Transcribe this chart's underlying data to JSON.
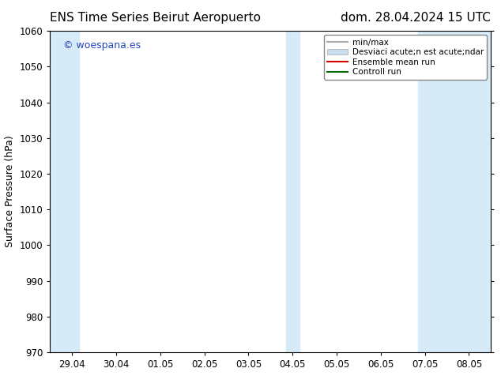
{
  "title_left": "ENS Time Series Beirut Aeropuerto",
  "title_right": "dom. 28.04.2024 15 UTC",
  "ylabel": "Surface Pressure (hPa)",
  "ylim": [
    970,
    1060
  ],
  "yticks": [
    970,
    980,
    990,
    1000,
    1010,
    1020,
    1030,
    1040,
    1050,
    1060
  ],
  "xlabels": [
    "29.04",
    "30.04",
    "01.05",
    "02.05",
    "03.05",
    "04.05",
    "05.05",
    "06.05",
    "07.05",
    "08.05"
  ],
  "x_positions": [
    0,
    1,
    2,
    3,
    4,
    5,
    6,
    7,
    8,
    9
  ],
  "xlim": [
    -0.5,
    9.5
  ],
  "shaded_bands": [
    {
      "xmin": -0.5,
      "xmax": 0.15
    },
    {
      "xmin": 4.85,
      "xmax": 5.15
    },
    {
      "xmin": 7.85,
      "xmax": 9.5
    }
  ],
  "band_color": "#d6eaf8",
  "watermark": "© woespana.es",
  "watermark_color": "#2244bb",
  "legend_line1_label": "min/max",
  "legend_line1_color": "#aaaaaa",
  "legend_band_label": "Desviaci acute;n est acute;ndar",
  "legend_band_color": "#c8ddf0",
  "legend_mean_label": "Ensemble mean run",
  "legend_mean_color": "#dd0000",
  "legend_ctrl_label": "Controll run",
  "legend_ctrl_color": "#006600",
  "background_color": "#ffffff",
  "title_fontsize": 11,
  "axis_label_fontsize": 9,
  "tick_fontsize": 8.5,
  "legend_fontsize": 7.5
}
